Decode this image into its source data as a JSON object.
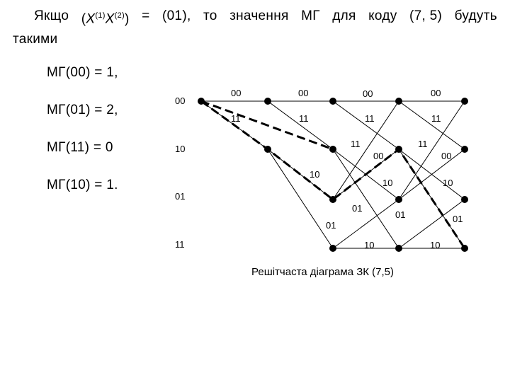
{
  "intro": {
    "line1": [
      "Якщо",
      "(X(1)X(2))",
      "=",
      "(01),",
      "то",
      "значення",
      "МГ",
      "для",
      "коду",
      "(7, 5)",
      "будуть"
    ],
    "line2": "такими"
  },
  "metrics": [
    "МГ(00) = 1,",
    "МГ(01) = 2,",
    "МГ(11) = 0",
    "МГ(10) = 1."
  ],
  "state_labels": [
    "00",
    "10",
    "01",
    "11"
  ],
  "branch_labels": [
    "00",
    "00",
    "00",
    "00",
    "11",
    "11",
    "11",
    "11",
    "11",
    "11",
    "00",
    "00",
    "10",
    "10",
    "10",
    "01",
    "01",
    "01",
    "01",
    "10",
    "10"
  ],
  "caption": "Решітчаста діаграма ЗК (7,5)"
}
